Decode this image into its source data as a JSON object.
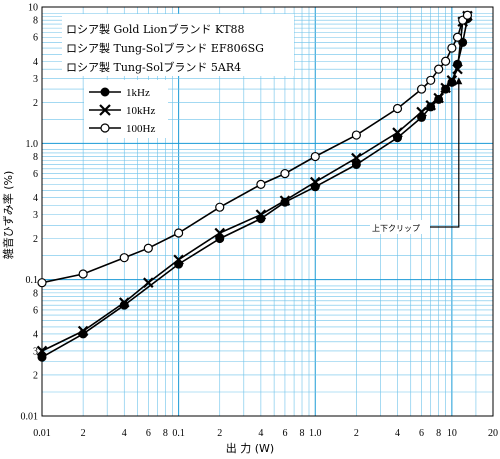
{
  "chart_data": {
    "type": "line",
    "x_scale": "log",
    "y_scale": "log",
    "xlim": [
      0.01,
      20
    ],
    "ylim": [
      0.01,
      10
    ],
    "grid": true,
    "xlabel": "出 力 (W)",
    "ylabel": "雑音ひずみ率 (%)",
    "x_tick_labels": [
      {
        "v": 0.01,
        "t": "0.01"
      },
      {
        "v": 0.02,
        "t": "2"
      },
      {
        "v": 0.04,
        "t": "4"
      },
      {
        "v": 0.06,
        "t": "6"
      },
      {
        "v": 0.08,
        "t": "8"
      },
      {
        "v": 0.1,
        "t": "0.1"
      },
      {
        "v": 0.2,
        "t": "2"
      },
      {
        "v": 0.4,
        "t": "4"
      },
      {
        "v": 0.6,
        "t": "6"
      },
      {
        "v": 0.8,
        "t": "8"
      },
      {
        "v": 1,
        "t": "1.0"
      },
      {
        "v": 2,
        "t": "2"
      },
      {
        "v": 4,
        "t": "4"
      },
      {
        "v": 6,
        "t": "6"
      },
      {
        "v": 8,
        "t": "8"
      },
      {
        "v": 10,
        "t": "10"
      },
      {
        "v": 20,
        "t": "20"
      }
    ],
    "y_tick_labels": [
      {
        "v": 0.01,
        "t": "0.01"
      },
      {
        "v": 0.02,
        "t": "2"
      },
      {
        "v": 0.03,
        "t": "3"
      },
      {
        "v": 0.04,
        "t": "4"
      },
      {
        "v": 0.06,
        "t": "6"
      },
      {
        "v": 0.08,
        "t": "8"
      },
      {
        "v": 0.1,
        "t": "0.1"
      },
      {
        "v": 0.2,
        "t": "2"
      },
      {
        "v": 0.3,
        "t": "3"
      },
      {
        "v": 0.4,
        "t": "4"
      },
      {
        "v": 0.6,
        "t": "6"
      },
      {
        "v": 0.8,
        "t": "8"
      },
      {
        "v": 1,
        "t": "1.0"
      },
      {
        "v": 2,
        "t": "2"
      },
      {
        "v": 3,
        "t": "3"
      },
      {
        "v": 4,
        "t": "4"
      },
      {
        "v": 6,
        "t": "6"
      },
      {
        "v": 8,
        "t": "8"
      },
      {
        "v": 10,
        "t": "10"
      }
    ],
    "notes": [
      "ロシア製 Gold Lionブランド KT88",
      "ロシア製 Tung-Solブランド EF806SG",
      "ロシア製 Tung-Solブランド 5AR4"
    ],
    "annotation": {
      "text": "上下クリップ",
      "arrow_to": {
        "x": 10.5,
        "y": 3.5
      }
    },
    "series": [
      {
        "name": "1kHz",
        "marker": "filled-circle",
        "x": [
          0.01,
          0.02,
          0.04,
          0.1,
          0.2,
          0.4,
          0.6,
          1,
          2,
          4,
          6,
          7,
          8,
          9,
          10,
          11,
          12,
          13
        ],
        "y": [
          0.027,
          0.04,
          0.065,
          0.13,
          0.2,
          0.28,
          0.37,
          0.48,
          0.7,
          1.1,
          1.55,
          1.85,
          2.1,
          2.5,
          2.8,
          3.8,
          5.5,
          8.2
        ]
      },
      {
        "name": "10kHz",
        "marker": "x",
        "x": [
          0.01,
          0.02,
          0.04,
          0.06,
          0.1,
          0.2,
          0.4,
          0.6,
          1,
          2,
          4,
          6,
          7,
          8,
          9,
          10,
          11,
          12,
          13
        ],
        "y": [
          0.03,
          0.042,
          0.068,
          0.095,
          0.14,
          0.22,
          0.3,
          0.38,
          0.52,
          0.78,
          1.2,
          1.7,
          1.9,
          2.15,
          2.55,
          2.9,
          3.5,
          7.8,
          8.6
        ]
      },
      {
        "name": "100Hz",
        "marker": "open-circle",
        "x": [
          0.01,
          0.02,
          0.04,
          0.06,
          0.1,
          0.2,
          0.4,
          0.6,
          1,
          2,
          4,
          6,
          7,
          8,
          9,
          10,
          11,
          12,
          13
        ],
        "y": [
          0.095,
          0.11,
          0.145,
          0.17,
          0.22,
          0.34,
          0.5,
          0.6,
          0.8,
          1.15,
          1.8,
          2.5,
          2.9,
          3.5,
          4.0,
          5.0,
          6.0,
          8.0,
          8.7
        ]
      }
    ]
  }
}
